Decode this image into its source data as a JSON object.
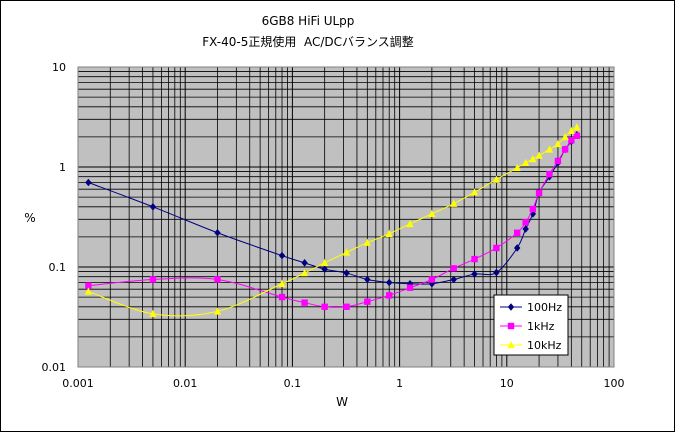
{
  "chart_data": {
    "type": "line",
    "title": [
      "6GB8 HiFi ULpp",
      "FX-40-5正規使用  AC/DCバランス調整"
    ],
    "xlabel": "W",
    "ylabel": "%",
    "xscale": "log",
    "yscale": "log",
    "xlim": [
      0.001,
      100
    ],
    "ylim": [
      0.01,
      10
    ],
    "grid": true,
    "legend": "bottom-right",
    "x_ticks": [
      "0.001",
      "0.01",
      "0.1",
      "1",
      "10",
      "100"
    ],
    "y_ticks": [
      "0.01",
      "0.1",
      "1",
      "10"
    ],
    "series": [
      {
        "name": "100Hz",
        "color": "#000080",
        "marker": "diamond",
        "x": [
          0.00125,
          0.005,
          0.02,
          0.08,
          0.13,
          0.2,
          0.32,
          0.5,
          0.8,
          1.25,
          2,
          3.2,
          5,
          8,
          12.5,
          15,
          17.5,
          20,
          25,
          30,
          35,
          40,
          45
        ],
        "y": [
          0.7,
          0.4,
          0.22,
          0.13,
          0.11,
          0.095,
          0.087,
          0.075,
          0.07,
          0.068,
          0.068,
          0.075,
          0.085,
          0.088,
          0.155,
          0.24,
          0.34,
          0.55,
          0.8,
          1.1,
          1.5,
          1.8,
          2.1
        ]
      },
      {
        "name": "1kHz",
        "color": "#FF00FF",
        "marker": "square",
        "x": [
          0.00125,
          0.005,
          0.02,
          0.08,
          0.13,
          0.2,
          0.32,
          0.5,
          0.8,
          1.25,
          2,
          3.2,
          5,
          8,
          12.5,
          15,
          17.5,
          20,
          25,
          30,
          35,
          40,
          45
        ],
        "y": [
          0.065,
          0.075,
          0.075,
          0.05,
          0.044,
          0.04,
          0.04,
          0.045,
          0.052,
          0.062,
          0.075,
          0.097,
          0.12,
          0.155,
          0.22,
          0.28,
          0.38,
          0.55,
          0.85,
          1.15,
          1.5,
          1.85,
          2.05
        ]
      },
      {
        "name": "10kHz",
        "color": "#FFFF00",
        "marker": "triangle",
        "x": [
          0.00125,
          0.005,
          0.02,
          0.08,
          0.13,
          0.2,
          0.32,
          0.5,
          0.8,
          1.25,
          2,
          3.2,
          5,
          8,
          12.5,
          15,
          17.5,
          20,
          25,
          30,
          35,
          40,
          45
        ],
        "y": [
          0.057,
          0.034,
          0.036,
          0.068,
          0.087,
          0.11,
          0.14,
          0.175,
          0.215,
          0.27,
          0.34,
          0.43,
          0.56,
          0.75,
          0.98,
          1.1,
          1.2,
          1.3,
          1.5,
          1.7,
          2.0,
          2.3,
          2.5
        ]
      }
    ]
  }
}
